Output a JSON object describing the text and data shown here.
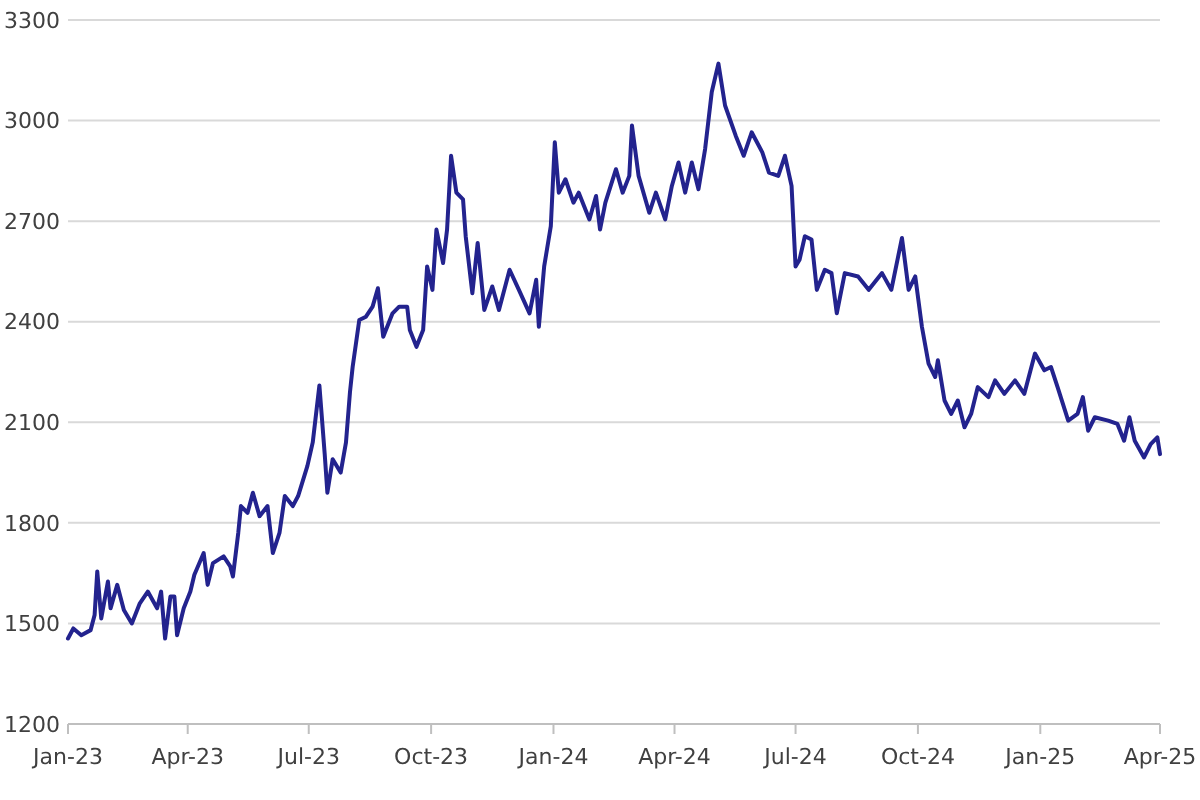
{
  "chart_data": {
    "type": "line",
    "color": "#23238e",
    "line_style": "solid",
    "marker": "none",
    "grid": "y",
    "ylim": [
      1200,
      3300
    ],
    "yticks": [
      1200,
      1500,
      1800,
      2100,
      2400,
      2700,
      3000,
      3300
    ],
    "xlim": [
      "2023-01-01",
      "2025-04-01"
    ],
    "xticks": [
      {
        "value": "2023-01-01",
        "label": "Jan-23"
      },
      {
        "value": "2023-04-01",
        "label": "Apr-23"
      },
      {
        "value": "2023-07-01",
        "label": "Jul-23"
      },
      {
        "value": "2023-10-01",
        "label": "Oct-23"
      },
      {
        "value": "2024-01-01",
        "label": "Jan-24"
      },
      {
        "value": "2024-04-01",
        "label": "Apr-24"
      },
      {
        "value": "2024-07-01",
        "label": "Jul-24"
      },
      {
        "value": "2024-10-01",
        "label": "Oct-24"
      },
      {
        "value": "2025-01-01",
        "label": "Jan-25"
      },
      {
        "value": "2025-04-01",
        "label": "Apr-25"
      }
    ],
    "x": [
      "2023-01-01",
      "2023-01-05",
      "2023-01-11",
      "2023-01-18",
      "2023-01-21",
      "2023-01-23",
      "2023-01-26",
      "2023-01-31",
      "2023-02-02",
      "2023-02-07",
      "2023-02-12",
      "2023-02-18",
      "2023-02-24",
      "2023-03-02",
      "2023-03-09",
      "2023-03-12",
      "2023-03-15",
      "2023-03-19",
      "2023-03-22",
      "2023-03-24",
      "2023-03-29",
      "2023-04-03",
      "2023-04-06",
      "2023-04-13",
      "2023-04-16",
      "2023-04-20",
      "2023-04-28",
      "2023-05-03",
      "2023-05-05",
      "2023-05-09",
      "2023-05-11",
      "2023-05-16",
      "2023-05-20",
      "2023-05-25",
      "2023-05-31",
      "2023-06-04",
      "2023-06-09",
      "2023-06-13",
      "2023-06-19",
      "2023-06-23",
      "2023-06-30",
      "2023-07-04",
      "2023-07-09",
      "2023-07-13",
      "2023-07-15",
      "2023-07-19",
      "2023-07-25",
      "2023-07-29",
      "2023-08-01",
      "2023-08-03",
      "2023-08-08",
      "2023-08-13",
      "2023-08-18",
      "2023-08-22",
      "2023-08-26",
      "2023-09-02",
      "2023-09-07",
      "2023-09-13",
      "2023-09-15",
      "2023-09-20",
      "2023-09-25",
      "2023-09-28",
      "2023-10-02",
      "2023-10-05",
      "2023-10-10",
      "2023-10-13",
      "2023-10-16",
      "2023-10-20",
      "2023-10-25",
      "2023-10-27",
      "2023-11-01",
      "2023-11-05",
      "2023-11-10",
      "2023-11-16",
      "2023-11-21",
      "2023-11-29",
      "2023-12-06",
      "2023-12-14",
      "2023-12-19",
      "2023-12-21",
      "2023-12-25",
      "2023-12-30",
      "2024-01-02",
      "2024-01-05",
      "2024-01-10",
      "2024-01-16",
      "2024-01-20",
      "2024-01-28",
      "2024-02-02",
      "2024-02-05",
      "2024-02-09",
      "2024-02-17",
      "2024-02-22",
      "2024-02-27",
      "2024-02-29",
      "2024-03-05",
      "2024-03-13",
      "2024-03-18",
      "2024-03-25",
      "2024-03-30",
      "2024-04-04",
      "2024-04-09",
      "2024-04-14",
      "2024-04-19",
      "2024-04-24",
      "2024-04-29",
      "2024-05-04",
      "2024-05-09",
      "2024-05-17",
      "2024-05-23",
      "2024-05-29",
      "2024-06-06",
      "2024-06-11",
      "2024-06-18",
      "2024-06-23",
      "2024-06-28",
      "2024-07-01",
      "2024-07-04",
      "2024-07-08",
      "2024-07-13",
      "2024-07-17",
      "2024-07-23",
      "2024-07-28",
      "2024-08-01",
      "2024-08-07",
      "2024-08-17",
      "2024-08-25",
      "2024-09-04",
      "2024-09-11",
      "2024-09-19",
      "2024-09-24",
      "2024-09-29",
      "2024-10-04",
      "2024-10-09",
      "2024-10-14",
      "2024-10-16",
      "2024-10-21",
      "2024-10-26",
      "2024-10-31",
      "2024-11-05",
      "2024-11-10",
      "2024-11-15",
      "2024-11-23",
      "2024-11-28",
      "2024-12-05",
      "2024-12-13",
      "2024-12-20",
      "2024-12-28",
      "2025-01-04",
      "2025-01-09",
      "2025-01-14",
      "2025-01-22",
      "2025-01-29",
      "2025-02-02",
      "2025-02-06",
      "2025-02-11",
      "2025-02-21",
      "2025-02-28",
      "2025-03-05",
      "2025-03-09",
      "2025-03-13",
      "2025-03-20",
      "2025-03-25",
      "2025-03-30",
      "2025-04-01"
    ],
    "values": [
      1455,
      1485,
      1465,
      1480,
      1525,
      1655,
      1515,
      1625,
      1545,
      1615,
      1540,
      1500,
      1560,
      1595,
      1545,
      1595,
      1455,
      1580,
      1580,
      1465,
      1545,
      1595,
      1645,
      1710,
      1615,
      1680,
      1700,
      1670,
      1640,
      1770,
      1850,
      1830,
      1890,
      1820,
      1850,
      1710,
      1770,
      1880,
      1850,
      1880,
      1970,
      2040,
      2210,
      2005,
      1890,
      1990,
      1950,
      2040,
      2190,
      2265,
      2405,
      2415,
      2445,
      2500,
      2355,
      2425,
      2445,
      2445,
      2375,
      2325,
      2375,
      2565,
      2495,
      2675,
      2575,
      2675,
      2895,
      2785,
      2765,
      2655,
      2485,
      2635,
      2435,
      2505,
      2435,
      2555,
      2495,
      2425,
      2525,
      2385,
      2565,
      2685,
      2935,
      2785,
      2825,
      2755,
      2785,
      2705,
      2775,
      2675,
      2755,
      2855,
      2785,
      2835,
      2985,
      2835,
      2725,
      2785,
      2705,
      2805,
      2875,
      2785,
      2875,
      2795,
      2915,
      3085,
      3170,
      3045,
      2955,
      2895,
      2965,
      2905,
      2845,
      2835,
      2895,
      2805,
      2565,
      2585,
      2655,
      2645,
      2495,
      2555,
      2545,
      2425,
      2545,
      2535,
      2495,
      2545,
      2495,
      2650,
      2495,
      2535,
      2385,
      2275,
      2235,
      2285,
      2165,
      2125,
      2165,
      2085,
      2125,
      2205,
      2175,
      2225,
      2185,
      2225,
      2185,
      2305,
      2255,
      2265,
      2205,
      2105,
      2125,
      2175,
      2075,
      2115,
      2105,
      2095,
      2045,
      2115,
      2045,
      1995,
      2035,
      2055,
      2005
    ]
  }
}
